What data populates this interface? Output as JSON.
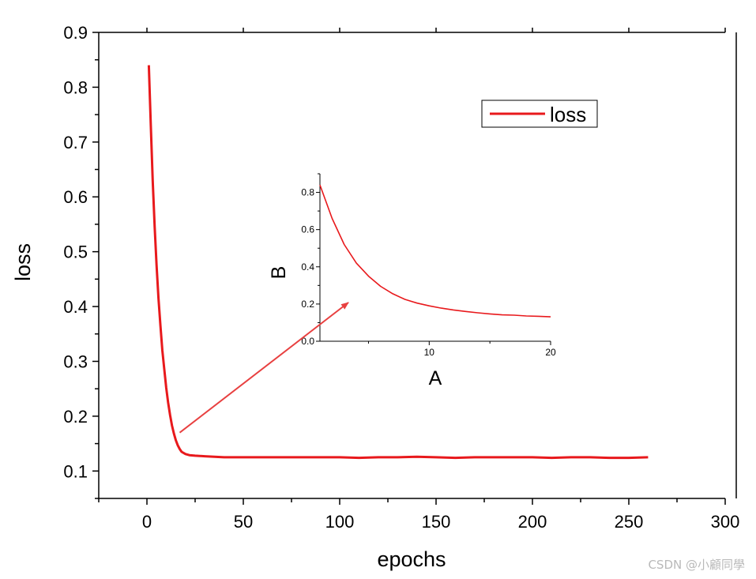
{
  "chart_data": {
    "type": "line",
    "main": {
      "xlabel": "epochs",
      "ylabel": "loss",
      "xlim": [
        -25,
        300
      ],
      "ylim": [
        0.05,
        0.9
      ],
      "xticks": [
        0,
        50,
        100,
        150,
        200,
        250,
        300
      ],
      "yticks": [
        0.1,
        0.2,
        0.3,
        0.4,
        0.5,
        0.6,
        0.7,
        0.8,
        0.9
      ],
      "xtick_labels": [
        "0",
        "50",
        "100",
        "150",
        "200",
        "250",
        "300"
      ],
      "ytick_labels": [
        "0.1",
        "0.2",
        "0.3",
        "0.4",
        "0.5",
        "0.6",
        "0.7",
        "0.8",
        "0.9"
      ],
      "series": [
        {
          "name": "loss",
          "color": "#e8191c",
          "x": [
            1,
            2,
            3,
            4,
            5,
            6,
            7,
            8,
            9,
            10,
            11,
            12,
            13,
            14,
            15,
            16,
            17,
            18,
            20,
            22,
            25,
            30,
            35,
            40,
            50,
            60,
            70,
            80,
            90,
            100,
            110,
            120,
            130,
            140,
            150,
            160,
            170,
            180,
            190,
            200,
            210,
            220,
            230,
            240,
            250,
            260
          ],
          "y": [
            0.84,
            0.73,
            0.63,
            0.545,
            0.475,
            0.415,
            0.365,
            0.32,
            0.285,
            0.252,
            0.225,
            0.202,
            0.183,
            0.168,
            0.156,
            0.147,
            0.14,
            0.135,
            0.131,
            0.129,
            0.128,
            0.127,
            0.126,
            0.125,
            0.125,
            0.125,
            0.125,
            0.125,
            0.125,
            0.125,
            0.124,
            0.125,
            0.125,
            0.126,
            0.125,
            0.124,
            0.125,
            0.125,
            0.125,
            0.125,
            0.124,
            0.125,
            0.125,
            0.124,
            0.124,
            0.125
          ]
        }
      ],
      "legend": {
        "label": "loss",
        "position": "top-right"
      }
    },
    "inset": {
      "xlabel": "A",
      "ylabel": "B",
      "xlim": [
        1,
        20
      ],
      "ylim": [
        0,
        0.9
      ],
      "xticks": [
        10,
        20
      ],
      "yticks": [
        0.0,
        0.2,
        0.4,
        0.6,
        0.8
      ],
      "xtick_labels": [
        "10",
        "20"
      ],
      "ytick_labels": [
        "0.0",
        "0.2",
        "0.4",
        "0.6",
        "0.8"
      ],
      "series": [
        {
          "name": "loss",
          "color": "#e8191c",
          "x": [
            1,
            2,
            3,
            4,
            5,
            6,
            7,
            8,
            9,
            10,
            11,
            12,
            13,
            14,
            15,
            16,
            17,
            18,
            19,
            20
          ],
          "y": [
            0.84,
            0.66,
            0.52,
            0.42,
            0.35,
            0.295,
            0.255,
            0.225,
            0.205,
            0.19,
            0.178,
            0.168,
            0.16,
            0.153,
            0.147,
            0.142,
            0.14,
            0.136,
            0.134,
            0.131
          ]
        }
      ]
    },
    "annotation": {
      "type": "arrow",
      "color": "#e84040",
      "from": [
        17,
        0.17
      ],
      "to": "inset"
    }
  },
  "watermark": "CSDN @小顧同學"
}
